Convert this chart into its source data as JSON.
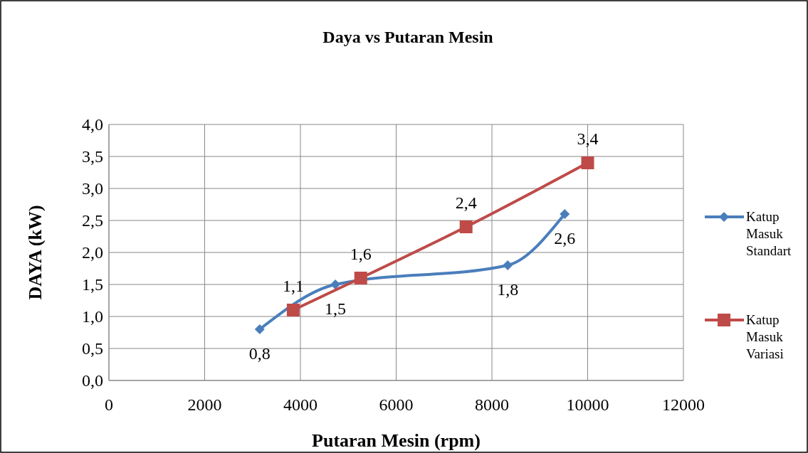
{
  "chart_data": {
    "type": "line",
    "title": "Daya vs Putaran Mesin",
    "xlabel": "Putaran Mesin (rpm)",
    "ylabel": "DAYA (kW)",
    "series": [
      {
        "name": "Katup Masuk Standart",
        "color": "#4a7ebb",
        "marker": "diamond",
        "x": [
          3150,
          4730,
          8330,
          9520
        ],
        "values": [
          0.8,
          1.5,
          1.8,
          2.6
        ],
        "value_labels": [
          "0,8",
          "1,5",
          "1,8",
          "2,6"
        ]
      },
      {
        "name": "Katup Masuk Variasi",
        "color": "#be4b48",
        "marker": "square",
        "x": [
          3850,
          5260,
          7460,
          10000
        ],
        "values": [
          1.1,
          1.6,
          2.4,
          3.4
        ],
        "value_labels": [
          "1,1",
          "1,6",
          "2,4",
          "3,4"
        ]
      }
    ],
    "xlim": [
      0,
      12000
    ],
    "xticks": [
      0,
      2000,
      4000,
      6000,
      8000,
      10000,
      12000
    ],
    "ylim": [
      0,
      4
    ],
    "yticks": [
      {
        "value": 0,
        "label": "0,0"
      },
      {
        "value": 0.5,
        "label": "0,5"
      },
      {
        "value": 1,
        "label": "1,0"
      },
      {
        "value": 1.5,
        "label": "1,5"
      },
      {
        "value": 2,
        "label": "2,0"
      },
      {
        "value": 2.5,
        "label": "2,5"
      },
      {
        "value": 3,
        "label": "3,0"
      },
      {
        "value": 3.5,
        "label": "3,5"
      },
      {
        "value": 4,
        "label": "4,0"
      }
    ],
    "grid": true,
    "legend": "right"
  }
}
